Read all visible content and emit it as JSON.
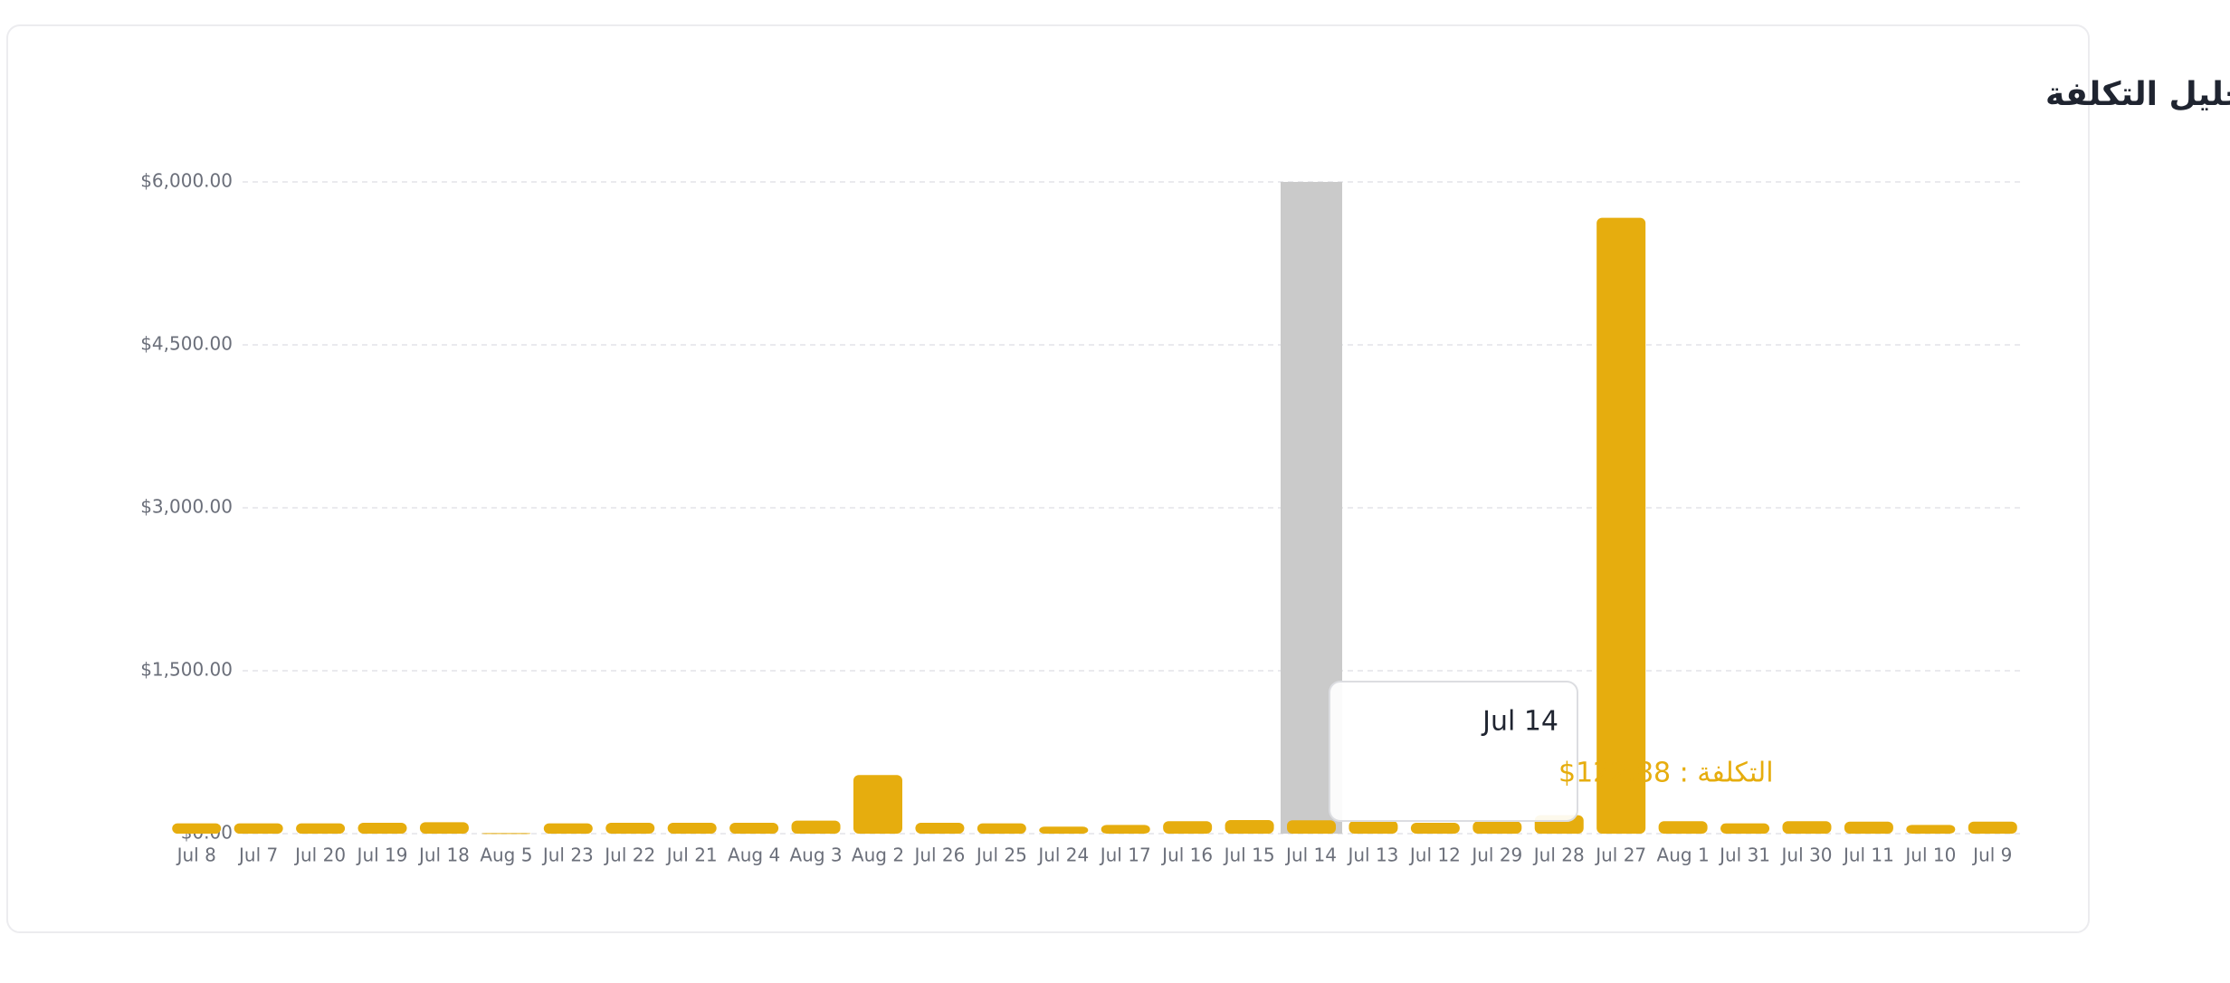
{
  "chart_data": {
    "type": "bar",
    "title": "تحليل التكلفة",
    "categories": [
      "Jul 8",
      "Jul 7",
      "Jul 20",
      "Jul 19",
      "Jul 18",
      "Aug 5",
      "Jul 23",
      "Jul 22",
      "Jul 21",
      "Aug 4",
      "Aug 3",
      "Aug 2",
      "Jul 26",
      "Jul 25",
      "Jul 24",
      "Jul 17",
      "Jul 16",
      "Jul 15",
      "Jul 14",
      "Jul 13",
      "Jul 12",
      "Jul 29",
      "Jul 28",
      "Jul 27",
      "Aug 1",
      "Jul 31",
      "Jul 30",
      "Jul 11",
      "Jul 10",
      "Jul 9"
    ],
    "values": [
      95,
      95,
      95,
      100,
      105,
      5,
      95,
      100,
      100,
      100,
      120,
      540,
      100,
      95,
      65,
      80,
      115,
      125,
      122.88,
      120,
      100,
      115,
      170,
      5670,
      115,
      95,
      115,
      110,
      80,
      110
    ],
    "color": "#e6ad0e",
    "ylim": [
      0,
      6000
    ],
    "yticks": [
      {
        "value": 0,
        "label": "$0.00"
      },
      {
        "value": 1500,
        "label": "$1,500.00"
      },
      {
        "value": 3000,
        "label": "$3,000.00"
      },
      {
        "value": 4500,
        "label": "$4,500.00"
      },
      {
        "value": 6000,
        "label": "$6,000.00"
      }
    ],
    "grid": true,
    "tooltip": {
      "title": "Jul 14",
      "label": "التكلفة : 122.88$"
    }
  }
}
